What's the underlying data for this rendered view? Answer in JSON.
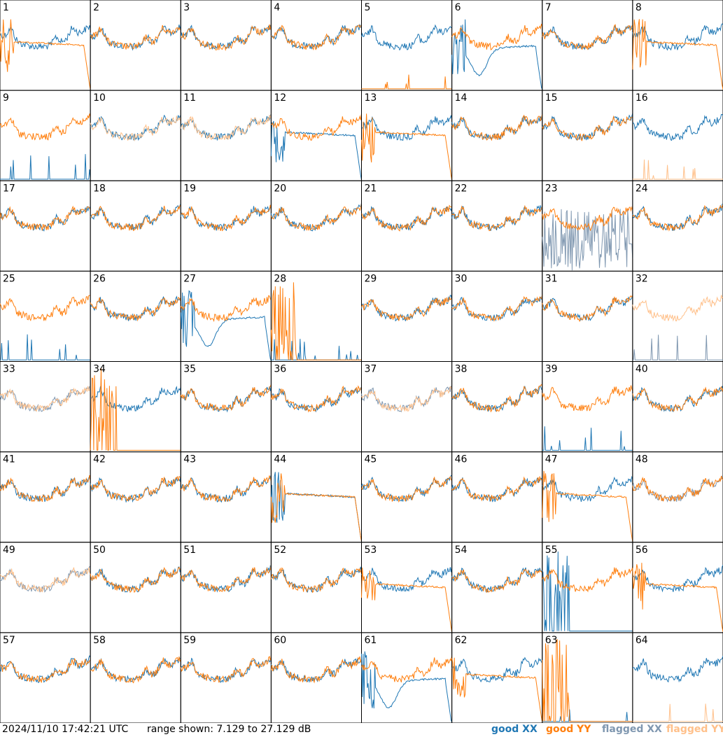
{
  "timestamp": "2024/11/10 17:42:21 UTC",
  "range_text": "range shown: 7.129 to 27.129 dB",
  "legend": {
    "good_xx": "good XX",
    "good_yy": "good YY",
    "flagged_xx": "flagged XX",
    "flagged_yy": "flagged YY"
  },
  "colors": {
    "good_xx": "#1f77b4",
    "good_yy": "#ff7f0e",
    "flagged_xx": "#7f97b0",
    "flagged_yy": "#ffc08a"
  },
  "chart_data": {
    "type": "line",
    "grid": "8x8 small multiples, one panel per antenna tile",
    "ylim": [
      7.129,
      27.129
    ],
    "units": "dB",
    "panels": [
      {
        "id": "1",
        "xx": "good-sky",
        "yy": "good-rolloff"
      },
      {
        "id": "2",
        "xx": "good-sky",
        "yy": "good-sky"
      },
      {
        "id": "3",
        "xx": "good-sky",
        "yy": "good-sky"
      },
      {
        "id": "4",
        "xx": "good-sky",
        "yy": "good-sky"
      },
      {
        "id": "5",
        "xx": "good-sky",
        "yy": "good-flat-low"
      },
      {
        "id": "6",
        "xx": "good-dip",
        "yy": "good-sky"
      },
      {
        "id": "7",
        "xx": "good-sky",
        "yy": "good-sky"
      },
      {
        "id": "8",
        "xx": "good-sky",
        "yy": "good-rolloff"
      },
      {
        "id": "9",
        "xx": "good-flat-low",
        "yy": "good-sky"
      },
      {
        "id": "10",
        "xx": "good-sky",
        "yy": "flagged-sky"
      },
      {
        "id": "11",
        "xx": "good-sky",
        "yy": "flagged-sky"
      },
      {
        "id": "12",
        "xx": "good-rolloff",
        "yy": "good-sky"
      },
      {
        "id": "13",
        "xx": "good-sky",
        "yy": "good-rolloff"
      },
      {
        "id": "14",
        "xx": "good-sky",
        "yy": "good-sky"
      },
      {
        "id": "15",
        "xx": "good-sky",
        "yy": "good-sky"
      },
      {
        "id": "16",
        "xx": "good-sky",
        "yy": "flagged-flat-low"
      },
      {
        "id": "17",
        "xx": "good-sky",
        "yy": "good-sky"
      },
      {
        "id": "18",
        "xx": "good-sky",
        "yy": "good-sky"
      },
      {
        "id": "19",
        "xx": "good-sky",
        "yy": "good-sky"
      },
      {
        "id": "20",
        "xx": "good-sky",
        "yy": "good-sky"
      },
      {
        "id": "21",
        "xx": "good-sky",
        "yy": "good-sky"
      },
      {
        "id": "22",
        "xx": "good-sky",
        "yy": "good-sky"
      },
      {
        "id": "23",
        "xx": "flagged-noise",
        "yy": "good-sky"
      },
      {
        "id": "24",
        "xx": "good-sky",
        "yy": "good-sky"
      },
      {
        "id": "25",
        "xx": "good-flat-low",
        "yy": "good-sky"
      },
      {
        "id": "26",
        "xx": "good-sky",
        "yy": "good-sky"
      },
      {
        "id": "27",
        "xx": "good-dip",
        "yy": "good-sky"
      },
      {
        "id": "28",
        "xx": "good-flat-low",
        "yy": "good-spikes"
      },
      {
        "id": "29",
        "xx": "good-sky",
        "yy": "good-sky"
      },
      {
        "id": "30",
        "xx": "good-sky",
        "yy": "good-sky"
      },
      {
        "id": "31",
        "xx": "good-sky",
        "yy": "good-sky"
      },
      {
        "id": "32",
        "xx": "flagged-flat-low",
        "yy": "flagged-sky"
      },
      {
        "id": "33",
        "xx": "flagged-sky",
        "yy": "flagged-sky"
      },
      {
        "id": "34",
        "xx": "good-sky",
        "yy": "good-spikes"
      },
      {
        "id": "35",
        "xx": "good-sky",
        "yy": "good-sky"
      },
      {
        "id": "36",
        "xx": "good-sky",
        "yy": "good-sky"
      },
      {
        "id": "37",
        "xx": "flagged-sky",
        "yy": "flagged-sky"
      },
      {
        "id": "38",
        "xx": "good-sky",
        "yy": "good-sky"
      },
      {
        "id": "39",
        "xx": "good-flat-low",
        "yy": "good-sky"
      },
      {
        "id": "40",
        "xx": "good-sky",
        "yy": "good-sky"
      },
      {
        "id": "41",
        "xx": "good-sky",
        "yy": "good-sky"
      },
      {
        "id": "42",
        "xx": "good-sky",
        "yy": "good-sky"
      },
      {
        "id": "43",
        "xx": "good-sky",
        "yy": "good-sky"
      },
      {
        "id": "44",
        "xx": "good-rolloff",
        "yy": "good-rolloff"
      },
      {
        "id": "45",
        "xx": "good-sky",
        "yy": "good-sky"
      },
      {
        "id": "46",
        "xx": "good-sky",
        "yy": "good-sky"
      },
      {
        "id": "47",
        "xx": "good-sky",
        "yy": "good-rolloff"
      },
      {
        "id": "48",
        "xx": "flagged-sky",
        "yy": "good-sky"
      },
      {
        "id": "49",
        "xx": "flagged-sky",
        "yy": "flagged-sky"
      },
      {
        "id": "50",
        "xx": "good-sky",
        "yy": "good-sky"
      },
      {
        "id": "51",
        "xx": "good-sky",
        "yy": "good-sky"
      },
      {
        "id": "52",
        "xx": "good-sky",
        "yy": "good-sky"
      },
      {
        "id": "53",
        "xx": "good-sky",
        "yy": "good-rolloff"
      },
      {
        "id": "54",
        "xx": "good-sky",
        "yy": "good-sky"
      },
      {
        "id": "55",
        "xx": "good-spikes",
        "yy": "good-sky"
      },
      {
        "id": "56",
        "xx": "good-sky",
        "yy": "good-rolloff"
      },
      {
        "id": "57",
        "xx": "good-sky",
        "yy": "good-sky"
      },
      {
        "id": "58",
        "xx": "good-sky",
        "yy": "good-sky"
      },
      {
        "id": "59",
        "xx": "good-sky",
        "yy": "good-sky"
      },
      {
        "id": "60",
        "xx": "good-sky",
        "yy": "good-sky"
      },
      {
        "id": "61",
        "xx": "good-dip",
        "yy": "good-sky"
      },
      {
        "id": "62",
        "xx": "good-sky",
        "yy": "good-rolloff"
      },
      {
        "id": "63",
        "xx": "good-flat-low",
        "yy": "good-spikes"
      },
      {
        "id": "64",
        "xx": "good-sky",
        "yy": "flagged-flat-low"
      }
    ]
  }
}
